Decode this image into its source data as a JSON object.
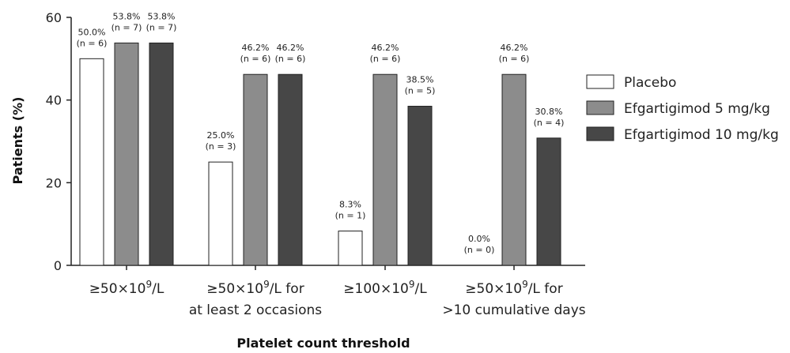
{
  "chart_data": {
    "type": "bar",
    "title": "",
    "xlabel": "Platelet count threshold",
    "ylabel": "Patients (%)",
    "ylim": [
      0,
      60
    ],
    "yticks": [
      0,
      20,
      40,
      60
    ],
    "grid": false,
    "legend_position": "right",
    "categories": [
      {
        "line1": "≥50×10",
        "sup1": "9",
        "post1": "/L",
        "line2": ""
      },
      {
        "line1": "≥50×10",
        "sup1": "9",
        "post1": "/L for",
        "line2": "at least 2 occasions"
      },
      {
        "line1": "≥100×10",
        "sup1": "9",
        "post1": "/L",
        "line2": ""
      },
      {
        "line1": "≥50×10",
        "sup1": "9",
        "post1": "/L for",
        "line2": ">10 cumulative days"
      }
    ],
    "series": [
      {
        "name": "Placebo",
        "color": "#ffffff",
        "values": [
          50.0,
          25.0,
          8.3,
          0.0
        ],
        "labels": [
          [
            "50.0%",
            "(n = 6)"
          ],
          [
            "25.0%",
            "(n = 3)"
          ],
          [
            "8.3%",
            "(n = 1)"
          ],
          [
            "0.0%",
            "(n = 0)"
          ]
        ]
      },
      {
        "name": "Efgartigimod 5 mg/kg",
        "color": "#8c8c8c",
        "values": [
          53.8,
          46.2,
          46.2,
          46.2
        ],
        "labels": [
          [
            "53.8%",
            "(n = 7)"
          ],
          [
            "46.2%",
            "(n = 6)"
          ],
          [
            "46.2%",
            "(n = 6)"
          ],
          [
            "46.2%",
            "(n = 6)"
          ]
        ]
      },
      {
        "name": "Efgartigimod 10 mg/kg",
        "color": "#474747",
        "values": [
          53.8,
          46.2,
          38.5,
          30.8
        ],
        "labels": [
          [
            "53.8%",
            "(n = 7)"
          ],
          [
            "46.2%",
            "(n = 6)"
          ],
          [
            "38.5%",
            "(n = 5)"
          ],
          [
            "30.8%",
            "(n = 4)"
          ]
        ]
      }
    ]
  }
}
